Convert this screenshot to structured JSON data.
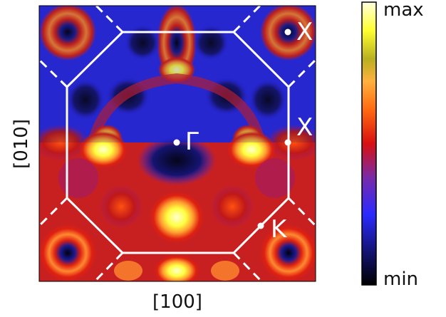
{
  "chart_data": {
    "type": "heatmap",
    "title": "",
    "xlabel": "[100]",
    "ylabel": "[010]",
    "colorbar": {
      "max_label": "max",
      "min_label": "min",
      "colormap": [
        "#000000",
        "#1a1a8c",
        "#2a2aff",
        "#8a2a9a",
        "#d01010",
        "#ff6a10",
        "#ffb040",
        "#c8c020",
        "#ffff30",
        "#ffffd8"
      ]
    },
    "points": [
      {
        "label": "Γ"
      },
      {
        "label": "X"
      },
      {
        "label": "X"
      },
      {
        "label": "K"
      }
    ],
    "boundary": "truncated-octahedron section (octagon) with dashed continuation lines at corners",
    "notes_visible": "upper half dimmed, lower half full intensity"
  },
  "colors": {
    "boundary": "#ffffff",
    "frame": "#000000"
  }
}
